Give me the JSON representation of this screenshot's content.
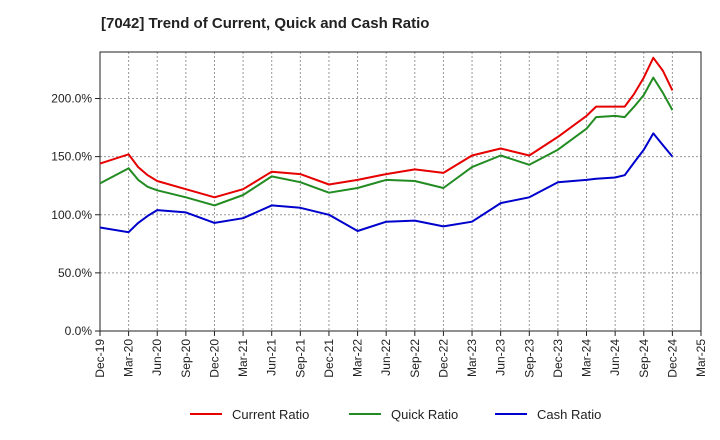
{
  "chart_data": {
    "type": "line",
    "title": "[7042]  Trend of Current, Quick and Cash Ratio",
    "xlabel": "",
    "ylabel": "",
    "ylim": [
      0,
      240
    ],
    "yticks": [
      0,
      50,
      100,
      150,
      200
    ],
    "ytick_labels": [
      "0.0%",
      "50.0%",
      "100.0%",
      "150.0%",
      "200.0%"
    ],
    "x_ticks": [
      "Dec-19",
      "Mar-20",
      "Jun-20",
      "Sep-20",
      "Dec-20",
      "Mar-21",
      "Jun-21",
      "Sep-21",
      "Dec-21",
      "Mar-22",
      "Jun-22",
      "Sep-22",
      "Dec-22",
      "Mar-23",
      "Jun-23",
      "Sep-23",
      "Dec-23",
      "Mar-24",
      "Jun-24",
      "Sep-24",
      "Dec-24",
      "Mar-25"
    ],
    "x": [
      0,
      3,
      4,
      5,
      6,
      9,
      12,
      15,
      18,
      21,
      24,
      27,
      30,
      33,
      36,
      39,
      42,
      45,
      48,
      51,
      52,
      54,
      55,
      56,
      57,
      58,
      59,
      60
    ],
    "grid": true,
    "legend_position": "bottom",
    "series": [
      {
        "name": "Current Ratio",
        "color": "#e60000",
        "x": [
          0,
          3,
          4,
          5,
          6,
          9,
          12,
          15,
          18,
          21,
          24,
          27,
          30,
          33,
          36,
          39,
          42,
          45,
          48,
          51,
          52,
          54,
          55,
          56,
          57,
          58,
          59,
          60
        ],
        "values": [
          144,
          152,
          141,
          134,
          129,
          122,
          115,
          122,
          137,
          135,
          126,
          130,
          135,
          139,
          136,
          151,
          157,
          151,
          167,
          185,
          193,
          193,
          193,
          204,
          218,
          235,
          224,
          207
        ]
      },
      {
        "name": "Quick Ratio",
        "color": "#228B22",
        "x": [
          0,
          3,
          4,
          5,
          6,
          9,
          12,
          15,
          18,
          21,
          24,
          27,
          30,
          33,
          36,
          39,
          42,
          45,
          48,
          51,
          52,
          54,
          55,
          56,
          57,
          58,
          59,
          60
        ],
        "values": [
          127,
          140,
          130,
          124,
          121,
          115,
          108,
          117,
          133,
          128,
          119,
          123,
          130,
          129,
          123,
          141,
          151,
          143,
          156,
          174,
          184,
          185,
          184,
          193,
          203,
          218,
          205,
          190
        ]
      },
      {
        "name": "Cash Ratio",
        "color": "#0000cc",
        "x": [
          0,
          3,
          4,
          5,
          6,
          9,
          12,
          15,
          18,
          21,
          24,
          27,
          30,
          33,
          36,
          39,
          42,
          45,
          48,
          51,
          52,
          54,
          55,
          56,
          57,
          58,
          59,
          60
        ],
        "values": [
          89,
          85,
          93,
          99,
          104,
          102,
          93,
          97,
          108,
          106,
          100,
          86,
          94,
          95,
          90,
          94,
          110,
          115,
          128,
          130,
          131,
          132,
          134,
          145,
          156,
          170,
          160,
          150
        ]
      }
    ]
  }
}
